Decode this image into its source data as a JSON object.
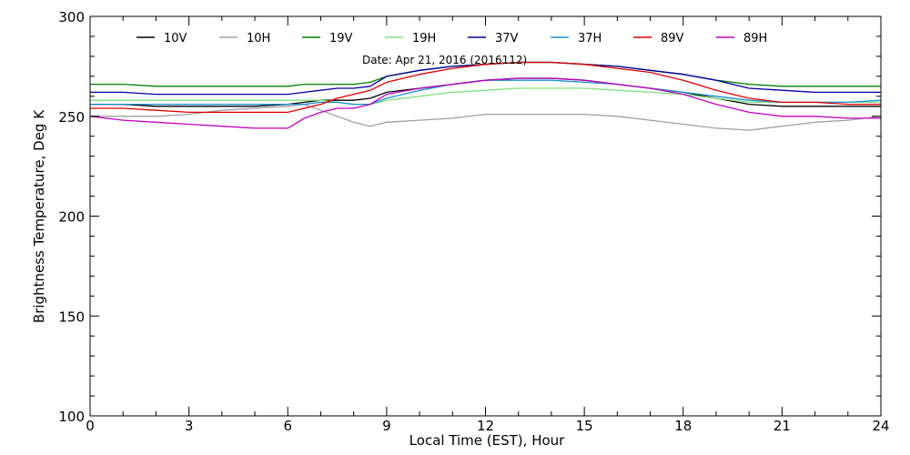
{
  "chart_data": {
    "type": "line",
    "title": "",
    "annotation": "Date: Apr 21, 2016 (2016112)",
    "xlabel": "Local Time (EST), Hour",
    "ylabel": "Brightness Temperature, Deg K",
    "xlim": [
      0,
      24
    ],
    "ylim": [
      100,
      300
    ],
    "xticks": [
      0,
      3,
      6,
      9,
      12,
      15,
      18,
      21,
      24
    ],
    "yticks": [
      100,
      150,
      200,
      250,
      300
    ],
    "grid": false,
    "legend_position": "top",
    "x": [
      0,
      1,
      2,
      3,
      4,
      5,
      6,
      6.5,
      7,
      7.5,
      8,
      8.5,
      9,
      10,
      11,
      12,
      13,
      14,
      15,
      16,
      17,
      18,
      19,
      20,
      21,
      22,
      23,
      24
    ],
    "series": [
      {
        "name": "10V",
        "color": "#000000",
        "values": [
          256,
          256,
          255,
          255,
          255,
          255,
          256,
          257,
          258,
          258,
          258,
          259,
          262,
          264,
          266,
          268,
          269,
          269,
          268,
          266,
          264,
          262,
          259,
          256,
          255,
          255,
          255,
          255
        ]
      },
      {
        "name": "10H",
        "color": "#a0a0a0",
        "values": [
          250,
          250,
          250,
          251,
          253,
          254,
          255,
          256,
          253,
          250,
          247,
          245,
          247,
          248,
          249,
          251,
          251,
          251,
          251,
          250,
          248,
          246,
          244,
          243,
          245,
          247,
          248,
          250
        ]
      },
      {
        "name": "19V",
        "color": "#008000",
        "values": [
          266,
          266,
          265,
          265,
          265,
          265,
          265,
          266,
          266,
          266,
          266,
          267,
          270,
          273,
          275,
          276,
          277,
          277,
          276,
          275,
          273,
          271,
          268,
          266,
          265,
          265,
          265,
          265
        ]
      },
      {
        "name": "19H",
        "color": "#7fe07f",
        "values": [
          258,
          258,
          258,
          258,
          258,
          258,
          258,
          258,
          258,
          257,
          256,
          256,
          258,
          260,
          262,
          263,
          264,
          264,
          264,
          263,
          262,
          261,
          259,
          257,
          257,
          257,
          257,
          257
        ]
      },
      {
        "name": "37V",
        "color": "#0000a0",
        "values": [
          262,
          262,
          261,
          261,
          261,
          261,
          261,
          262,
          263,
          264,
          264,
          265,
          270,
          273,
          275,
          276,
          277,
          277,
          276,
          275,
          273,
          271,
          268,
          264,
          263,
          262,
          262,
          262
        ]
      },
      {
        "name": "37H",
        "color": "#1a8fd0",
        "values": [
          256,
          256,
          256,
          256,
          256,
          256,
          256,
          256,
          257,
          257,
          256,
          256,
          259,
          263,
          266,
          268,
          268,
          268,
          267,
          266,
          264,
          262,
          260,
          258,
          257,
          257,
          257,
          258
        ]
      },
      {
        "name": "89V",
        "color": "#e00000",
        "values": [
          254,
          254,
          253,
          252,
          252,
          252,
          252,
          254,
          256,
          259,
          261,
          263,
          267,
          271,
          274,
          276,
          277,
          277,
          276,
          274,
          272,
          268,
          263,
          259,
          257,
          257,
          256,
          256
        ]
      },
      {
        "name": "89H",
        "color": "#c000c0",
        "values": [
          250,
          248,
          247,
          246,
          245,
          244,
          244,
          249,
          252,
          254,
          254,
          256,
          261,
          264,
          266,
          268,
          269,
          269,
          268,
          266,
          264,
          261,
          256,
          252,
          250,
          250,
          249,
          249
        ]
      }
    ]
  }
}
